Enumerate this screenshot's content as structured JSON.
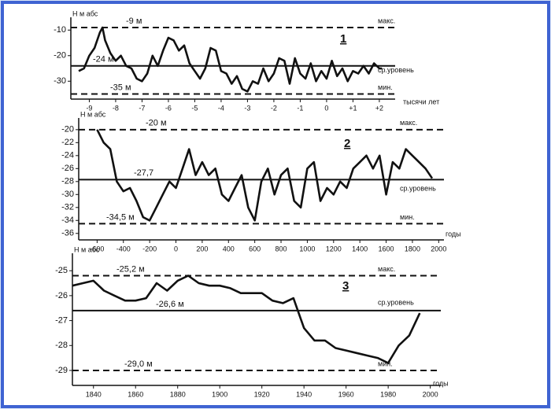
{
  "chart_data": [
    {
      "type": "line",
      "panel_label": "1",
      "ylabel": "Н м абс",
      "xlabel": "тысячи лет",
      "x": [
        -9.4,
        -9.2,
        -9.0,
        -8.8,
        -8.6,
        -8.5,
        -8.4,
        -8.2,
        -8.0,
        -7.8,
        -7.6,
        -7.4,
        -7.2,
        -7.0,
        -6.8,
        -6.6,
        -6.4,
        -6.2,
        -6.0,
        -5.8,
        -5.6,
        -5.4,
        -5.2,
        -5.0,
        -4.8,
        -4.6,
        -4.4,
        -4.2,
        -4.0,
        -3.8,
        -3.6,
        -3.4,
        -3.2,
        -3.0,
        -2.8,
        -2.6,
        -2.4,
        -2.2,
        -2.0,
        -1.8,
        -1.6,
        -1.4,
        -1.2,
        -1.0,
        -0.8,
        -0.6,
        -0.4,
        -0.2,
        0.0,
        0.2,
        0.4,
        0.6,
        0.8,
        1.0,
        1.2,
        1.4,
        1.6,
        1.8,
        2.0,
        2.1
      ],
      "series": [
        {
          "color": "#111111",
          "values": [
            -26,
            -25,
            -20,
            -17,
            -11,
            -9,
            -14,
            -19,
            -22,
            -20,
            -24,
            -25,
            -29,
            -30,
            -27,
            -20,
            -24,
            -18,
            -13,
            -14,
            -18,
            -16,
            -23,
            -26,
            -29,
            -25,
            -17,
            -18,
            -26,
            -27,
            -31,
            -28,
            -33,
            -34,
            -30,
            -31,
            -25,
            -30,
            -27,
            -21,
            -22,
            -31,
            -21,
            -27,
            -29,
            -23,
            -30,
            -26,
            -29,
            -22,
            -28,
            -25,
            -30,
            -26,
            -27,
            -24,
            -27,
            -23,
            -25,
            -25
          ]
        }
      ],
      "xlim": [
        -9.7,
        2.6
      ],
      "ylim": [
        -37,
        -5
      ],
      "xticks": [
        -9,
        -8,
        -7,
        -6,
        -5,
        -4,
        -3,
        -2,
        -1,
        0,
        {
          "value": 1,
          "label": "+1"
        },
        {
          "value": 2,
          "label": "+2"
        }
      ],
      "yticks": [
        -10,
        -20,
        -30
      ],
      "levels": [
        {
          "value": -9,
          "label": "-9 м",
          "name": "макс.",
          "style": "dashed"
        },
        {
          "value": -24,
          "label": "-24 м",
          "name": "ср.уровень",
          "style": "solid"
        },
        {
          "value": -35,
          "label": "-35 м",
          "name": "мин.",
          "style": "dashed"
        }
      ]
    },
    {
      "type": "line",
      "panel_label": "2",
      "ylabel": "Н м абс",
      "xlabel": "годы",
      "x": [
        -600,
        -550,
        -500,
        -450,
        -400,
        -350,
        -300,
        -250,
        -200,
        -150,
        -100,
        -50,
        0,
        50,
        100,
        150,
        200,
        250,
        300,
        350,
        400,
        450,
        500,
        550,
        600,
        650,
        700,
        750,
        800,
        850,
        900,
        950,
        1000,
        1050,
        1100,
        1150,
        1200,
        1250,
        1300,
        1350,
        1400,
        1450,
        1500,
        1550,
        1600,
        1650,
        1700,
        1750,
        1800,
        1850,
        1900,
        1950
      ],
      "series": [
        {
          "color": "#111111",
          "values": [
            -20,
            -22,
            -23,
            -28,
            -29.5,
            -29,
            -31,
            -33.5,
            -34,
            -32,
            -30,
            -28,
            -29,
            -26,
            -23,
            -27,
            -25,
            -27,
            -26,
            -30,
            -31,
            -29,
            -27,
            -32,
            -34,
            -28,
            -26,
            -30,
            -27,
            -26,
            -31,
            -32,
            -26,
            -25,
            -31,
            -29,
            -30,
            -28,
            -29,
            -26,
            -25,
            -24,
            -26,
            -24,
            -30,
            -25,
            -26,
            -23,
            -24,
            -25,
            -26,
            -27.5
          ]
        }
      ],
      "xlim": [
        -740,
        2040
      ],
      "ylim": [
        -37,
        -18.2
      ],
      "xticks": [
        -600,
        -400,
        -200,
        0,
        200,
        400,
        600,
        800,
        1000,
        1200,
        1400,
        1600,
        1800,
        2000
      ],
      "yticks": [
        -20,
        -22,
        -24,
        -26,
        -28,
        -30,
        -32,
        -34,
        -36
      ],
      "levels": [
        {
          "value": -20,
          "label": "-20 м",
          "name": "макс.",
          "style": "dashed"
        },
        {
          "value": -27.7,
          "label": "-27,7",
          "name": "ср.уровень",
          "style": "solid"
        },
        {
          "value": -34.5,
          "label": "-34,5 м",
          "name": "мин.",
          "style": "dashed"
        }
      ]
    },
    {
      "type": "line",
      "panel_label": "3",
      "ylabel": "Н м абс",
      "xlabel": "годы",
      "x": [
        1830,
        1835,
        1840,
        1845,
        1850,
        1855,
        1860,
        1865,
        1870,
        1875,
        1880,
        1885,
        1890,
        1895,
        1900,
        1905,
        1910,
        1915,
        1920,
        1925,
        1930,
        1935,
        1940,
        1945,
        1950,
        1955,
        1960,
        1965,
        1970,
        1975,
        1980,
        1985,
        1990,
        1995
      ],
      "series": [
        {
          "color": "#111111",
          "values": [
            -25.6,
            -25.5,
            -25.4,
            -25.8,
            -26.0,
            -26.2,
            -26.2,
            -26.1,
            -25.5,
            -25.8,
            -25.4,
            -25.2,
            -25.5,
            -25.6,
            -25.6,
            -25.7,
            -25.9,
            -25.9,
            -25.9,
            -26.2,
            -26.3,
            -26.1,
            -27.3,
            -27.8,
            -27.8,
            -28.1,
            -28.2,
            -28.3,
            -28.4,
            -28.5,
            -28.7,
            -28.0,
            -27.6,
            -26.7
          ]
        }
      ],
      "xlim": [
        1830,
        2005
      ],
      "ylim": [
        -29.6,
        -24.3
      ],
      "xticks": [
        1840,
        1860,
        1880,
        1900,
        1920,
        1940,
        1960,
        1980,
        2000
      ],
      "yticks": [
        -25,
        -26,
        -27,
        -28,
        -29
      ],
      "levels": [
        {
          "value": -25.2,
          "label": "-25,2 м",
          "name": "макс.",
          "style": "dashed"
        },
        {
          "value": -26.6,
          "label": "-26,6 м",
          "name": "ср.уровень",
          "style": "solid"
        },
        {
          "value": -29.0,
          "label": "-29,0 м",
          "name": "мин.",
          "style": "dashed"
        }
      ]
    }
  ]
}
